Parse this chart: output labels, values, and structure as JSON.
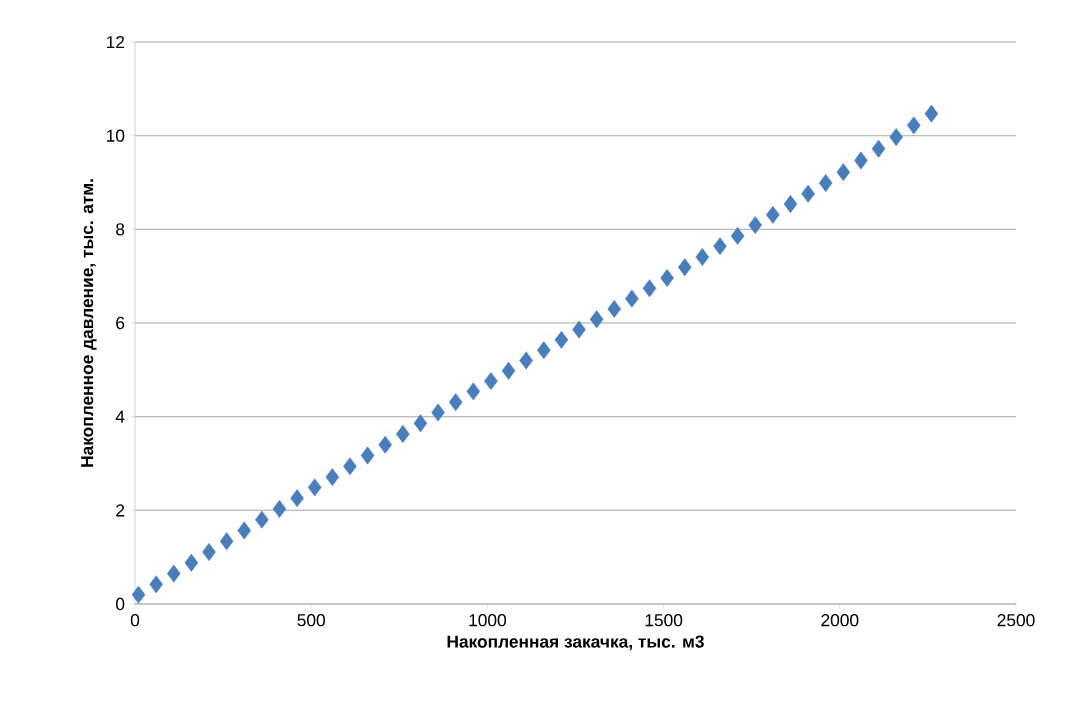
{
  "chart_data": {
    "type": "scatter",
    "xlabel": "Накопленная закачка, тыс. м3",
    "ylabel": "Накопленное давление,  тыс. атм.",
    "xlim": [
      0,
      2500
    ],
    "xticks": [
      0,
      500,
      1000,
      1500,
      2000,
      2500
    ],
    "ylim": [
      0,
      12
    ],
    "yticks": [
      0,
      2,
      4,
      6,
      8,
      10,
      12
    ],
    "grid": "y",
    "marker": "diamond",
    "series": [
      {
        "color": "#4a7ebb",
        "x": [
          10,
          60,
          110,
          160,
          210,
          260,
          310,
          360,
          410,
          460,
          510,
          560,
          610,
          660,
          710,
          760,
          810,
          860,
          910,
          960,
          1010,
          1060,
          1110,
          1160,
          1210,
          1260,
          1310,
          1360,
          1410,
          1460,
          1510,
          1560,
          1610,
          1660,
          1710,
          1760,
          1810,
          1860,
          1910,
          1960,
          2010,
          2060,
          2110,
          2160,
          2210,
          2260
        ],
        "values": [
          0.2,
          0.42,
          0.65,
          0.88,
          1.11,
          1.34,
          1.57,
          1.8,
          2.03,
          2.26,
          2.49,
          2.71,
          2.94,
          3.17,
          3.4,
          3.63,
          3.86,
          4.09,
          4.31,
          4.54,
          4.76,
          4.98,
          5.2,
          5.42,
          5.64,
          5.86,
          6.08,
          6.3,
          6.52,
          6.74,
          6.96,
          7.19,
          7.41,
          7.64,
          7.86,
          8.09,
          8.31,
          8.54,
          8.76,
          8.99,
          9.22,
          9.47,
          9.72,
          9.97,
          10.22,
          10.47
        ]
      }
    ]
  }
}
